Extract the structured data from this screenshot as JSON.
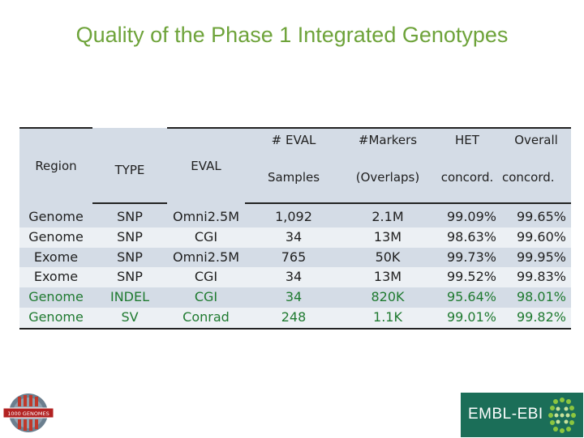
{
  "title": "Quality of the Phase 1 Integrated Genotypes",
  "table": {
    "headers": {
      "region": "Region",
      "type": "TYPE",
      "eval": "EVAL",
      "n_eval_top": "# EVAL",
      "n_eval_bottom": "Samples",
      "markers_top": "#Markers",
      "markers_bottom": "(Overlaps)",
      "het_top": "HET",
      "het_bottom": "concord.",
      "overall_top": "Overall",
      "overall_bottom": "concord."
    },
    "rows": [
      {
        "region": "Genome",
        "type": "SNP",
        "eval": "Omni2.5M",
        "samples": "1,092",
        "markers": "2.1M",
        "het": "99.09%",
        "overall": "99.65%"
      },
      {
        "region": "Genome",
        "type": "SNP",
        "eval": "CGI",
        "samples": "34",
        "markers": "13M",
        "het": "98.63%",
        "overall": "99.60%"
      },
      {
        "region": "Exome",
        "type": "SNP",
        "eval": "Omni2.5M",
        "samples": "765",
        "markers": "50K",
        "het": "99.73%",
        "overall": "99.95%"
      },
      {
        "region": "Exome",
        "type": "SNP",
        "eval": "CGI",
        "samples": "34",
        "markers": "13M",
        "het": "99.52%",
        "overall": "99.83%"
      },
      {
        "region": "Genome",
        "type": "INDEL",
        "eval": "CGI",
        "samples": "34",
        "markers": "820K",
        "het": "95.64%",
        "overall": "98.01%"
      },
      {
        "region": "Genome",
        "type": "SV",
        "eval": "Conrad",
        "samples": "248",
        "markers": "1.1K",
        "het": "99.01%",
        "overall": "99.82%"
      }
    ]
  },
  "logos": {
    "left": "1000 GENOMES",
    "right": "EMBL-EBI"
  },
  "colors": {
    "title": "#6ea33a",
    "table_band_dark": "#d4dce6",
    "table_band_light": "#ecf0f4",
    "value_green": "#1f7a30",
    "ebi_green": "#1b6e58"
  }
}
